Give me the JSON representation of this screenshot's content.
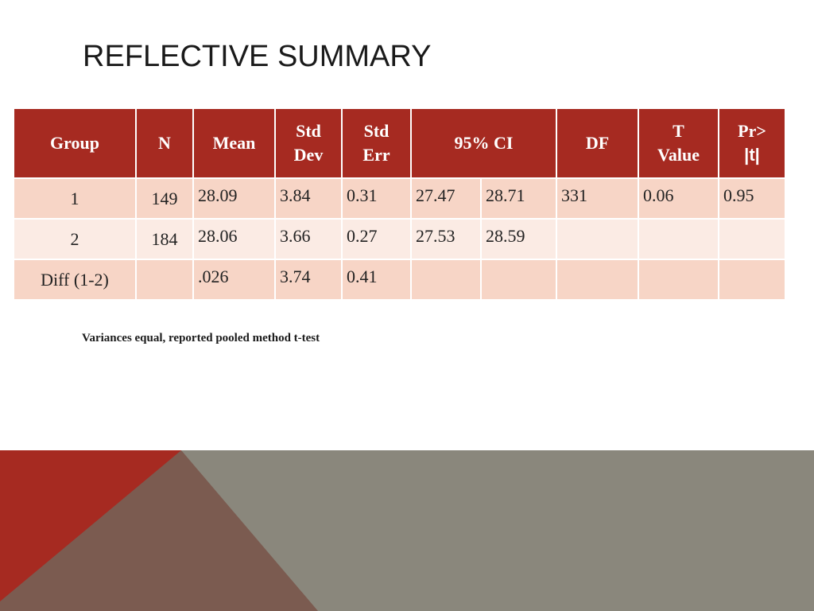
{
  "title": "REFLECTIVE SUMMARY",
  "table": {
    "headers": {
      "group": "Group",
      "n": "N",
      "mean": "Mean",
      "std_dev_1": "Std",
      "std_dev_2": "Dev",
      "std_err_1": "Std",
      "std_err_2": "Err",
      "ci": "95% CI",
      "df": "DF",
      "t_value_1": "T",
      "t_value_2": "Value",
      "pr_1": "Pr>",
      "pr_2": "|t|"
    },
    "rows": [
      {
        "group": "1",
        "n": "149",
        "mean": "28.09",
        "std_dev": "3.84",
        "std_err": "0.31",
        "ci_low": "27.47",
        "ci_high": "28.71",
        "df": "331",
        "t_value": "0.06",
        "pr": "0.95"
      },
      {
        "group": "2",
        "n": "184",
        "mean": "28.06",
        "std_dev": "3.66",
        "std_err": "0.27",
        "ci_low": "27.53",
        "ci_high": "28.59",
        "df": "",
        "t_value": "",
        "pr": ""
      },
      {
        "group": "Diff (1-2)",
        "n": "",
        "mean": ".026",
        "std_dev": "3.74",
        "std_err": "0.41",
        "ci_low": "",
        "ci_high": "",
        "df": "",
        "t_value": "",
        "pr": ""
      }
    ]
  },
  "note": "Variances equal, reported pooled method t-test",
  "colors": {
    "header_bg": "#a62a21",
    "row_odd": "#f7d5c6",
    "row_even": "#fbebe4",
    "deco_red": "#a62a21",
    "deco_brown": "#7b5b50",
    "deco_gray": "#8a877c"
  }
}
